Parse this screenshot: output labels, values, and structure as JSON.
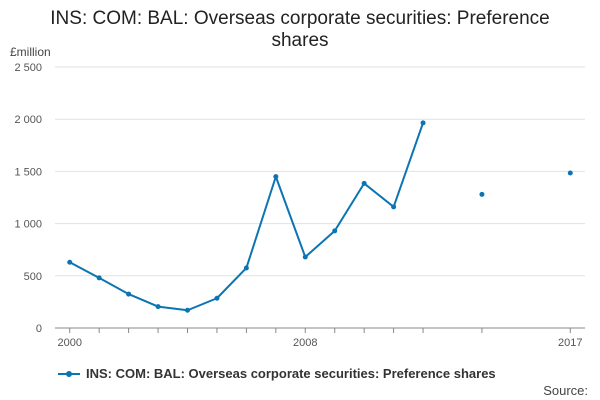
{
  "chart_data": {
    "type": "line",
    "title_lines": [
      "INS: COM: BAL: Overseas corporate securities: Preference",
      "shares"
    ],
    "unit": "£million",
    "x": [
      2000,
      2001,
      2002,
      2003,
      2004,
      2005,
      2006,
      2007,
      2008,
      2009,
      2010,
      2011,
      2012,
      2014,
      2017
    ],
    "xlim": [
      1999.5,
      2017.5
    ],
    "ylim": [
      0,
      2500
    ],
    "yticks": [
      0,
      500,
      1000,
      1500,
      2000,
      2500
    ],
    "ytick_labels": [
      "0",
      "500",
      "1 000",
      "1 500",
      "2 000",
      "2 500"
    ],
    "xticks": [
      2000,
      2008,
      2017
    ],
    "xtick_labels": [
      "2000",
      "2008",
      "2017"
    ],
    "xminor": [
      2000,
      2001,
      2002,
      2003,
      2004,
      2005,
      2006,
      2007,
      2008,
      2009,
      2010,
      2011,
      2012,
      2014,
      2017
    ],
    "series": [
      {
        "name": "INS: COM: BAL: Overseas corporate securities: Preference shares",
        "color": "#0b74b3",
        "values": [
          630,
          480,
          325,
          205,
          170,
          285,
          575,
          1450,
          680,
          930,
          1385,
          1160,
          1965,
          1280,
          1485
        ],
        "connected": [
          true,
          true,
          true,
          true,
          true,
          true,
          true,
          true,
          true,
          true,
          true,
          true,
          true,
          false,
          false
        ]
      }
    ],
    "grid": true,
    "legend_position": "bottom-left",
    "source_label": "Source:"
  }
}
